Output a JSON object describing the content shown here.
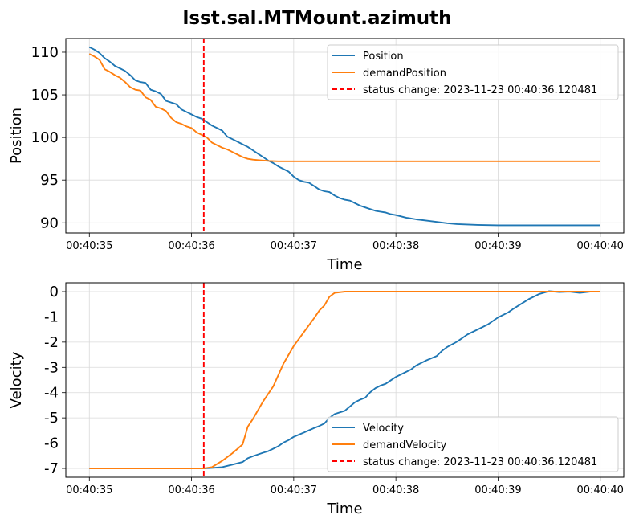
{
  "title": "lsst.sal.MTMount.azimuth",
  "chart_data": [
    {
      "type": "line",
      "xlabel": "Time",
      "ylabel": "Position",
      "xlim": [
        "00:40:35",
        "00:40:40"
      ],
      "ylim": [
        88.8,
        111.6
      ],
      "x_ticks": [
        "00:40:35",
        "00:40:36",
        "00:40:37",
        "00:40:38",
        "00:40:39",
        "00:40:40"
      ],
      "y_ticks": [
        90,
        95,
        100,
        105,
        110
      ],
      "grid": true,
      "legend_position": "top-right",
      "series": [
        {
          "name": "Position",
          "color": "#1f77b4",
          "x": [
            0,
            0.05,
            0.1,
            0.15,
            0.2,
            0.25,
            0.3,
            0.35,
            0.4,
            0.45,
            0.5,
            0.55,
            0.6,
            0.65,
            0.7,
            0.75,
            0.8,
            0.85,
            0.9,
            0.95,
            1.0,
            1.05,
            1.1,
            1.15,
            1.2,
            1.25,
            1.3,
            1.35,
            1.4,
            1.45,
            1.5,
            1.55,
            1.6,
            1.65,
            1.7,
            1.75,
            1.8,
            1.85,
            1.9,
            1.95,
            2.0,
            2.05,
            2.1,
            2.15,
            2.2,
            2.25,
            2.3,
            2.35,
            2.4,
            2.45,
            2.5,
            2.55,
            2.6,
            2.65,
            2.7,
            2.75,
            2.8,
            2.85,
            2.9,
            2.95,
            3.0,
            3.1,
            3.2,
            3.3,
            3.4,
            3.5,
            3.6,
            3.7,
            3.8,
            3.9,
            4.0,
            4.1,
            4.2,
            4.3,
            4.4,
            4.5,
            4.6,
            4.7,
            4.8,
            4.9,
            5.0
          ],
          "y": [
            110.6,
            110.3,
            109.9,
            109.3,
            108.9,
            108.4,
            108.1,
            107.8,
            107.3,
            106.7,
            106.5,
            106.4,
            105.6,
            105.4,
            105.1,
            104.3,
            104.1,
            103.9,
            103.3,
            103.0,
            102.7,
            102.4,
            102.2,
            101.8,
            101.4,
            101.1,
            100.8,
            100.1,
            99.8,
            99.5,
            99.2,
            98.9,
            98.5,
            98.1,
            97.7,
            97.3,
            97.0,
            96.6,
            96.3,
            96.0,
            95.4,
            95.0,
            94.8,
            94.7,
            94.3,
            93.9,
            93.7,
            93.6,
            93.2,
            92.9,
            92.7,
            92.6,
            92.3,
            92.0,
            91.8,
            91.6,
            91.4,
            91.3,
            91.2,
            91.0,
            90.9,
            90.6,
            90.4,
            90.25,
            90.1,
            89.95,
            89.85,
            89.8,
            89.75,
            89.72,
            89.7,
            89.7,
            89.7,
            89.7,
            89.7,
            89.7,
            89.7,
            89.7,
            89.7,
            89.7,
            89.7
          ]
        },
        {
          "name": "demandPosition",
          "color": "#ff7f0e",
          "x": [
            0,
            0.05,
            0.1,
            0.15,
            0.2,
            0.25,
            0.3,
            0.35,
            0.4,
            0.45,
            0.5,
            0.55,
            0.6,
            0.65,
            0.7,
            0.75,
            0.8,
            0.85,
            0.9,
            0.95,
            1.0,
            1.05,
            1.1,
            1.15,
            1.2,
            1.25,
            1.3,
            1.35,
            1.4,
            1.45,
            1.5,
            1.55,
            1.6,
            1.65,
            1.7,
            1.75,
            1.8,
            1.85,
            1.9,
            1.95,
            2.0,
            2.1,
            2.2,
            2.3,
            2.4,
            2.5,
            2.6,
            2.7,
            2.8,
            2.9,
            3.0,
            3.2,
            3.4,
            3.6,
            3.8,
            4.0,
            4.2,
            4.4,
            4.6,
            4.8,
            5.0
          ],
          "y": [
            109.8,
            109.5,
            109.1,
            108.0,
            107.7,
            107.3,
            107.0,
            106.5,
            105.9,
            105.6,
            105.5,
            104.7,
            104.4,
            103.6,
            103.4,
            103.1,
            102.3,
            101.8,
            101.6,
            101.3,
            101.1,
            100.6,
            100.3,
            100.0,
            99.4,
            99.1,
            98.8,
            98.6,
            98.3,
            98.0,
            97.7,
            97.5,
            97.4,
            97.35,
            97.3,
            97.25,
            97.22,
            97.2,
            97.2,
            97.2,
            97.2,
            97.2,
            97.2,
            97.2,
            97.2,
            97.2,
            97.2,
            97.2,
            97.2,
            97.2,
            97.2,
            97.2,
            97.2,
            97.2,
            97.2,
            97.2,
            97.2,
            97.2,
            97.2,
            97.2,
            97.2
          ]
        }
      ],
      "annotations": [
        {
          "name": "status change: 2023-11-23 00:40:36.120481",
          "x": 1.12,
          "color": "#ff0000",
          "style": "dashed"
        }
      ]
    },
    {
      "type": "line",
      "xlabel": "Time",
      "ylabel": "Velocity",
      "xlim": [
        "00:40:35",
        "00:40:40"
      ],
      "ylim": [
        -7.35,
        0.35
      ],
      "x_ticks": [
        "00:40:35",
        "00:40:36",
        "00:40:37",
        "00:40:38",
        "00:40:39",
        "00:40:40"
      ],
      "y_ticks": [
        0,
        -1,
        -2,
        -3,
        -4,
        -5,
        -6,
        -7
      ],
      "grid": true,
      "legend_position": "bottom-right",
      "series": [
        {
          "name": "Velocity",
          "color": "#1f77b4",
          "x": [
            0,
            0.5,
            1.0,
            1.12,
            1.2,
            1.3,
            1.4,
            1.5,
            1.55,
            1.6,
            1.7,
            1.75,
            1.8,
            1.85,
            1.9,
            1.95,
            2.0,
            2.1,
            2.2,
            2.25,
            2.3,
            2.35,
            2.4,
            2.5,
            2.6,
            2.65,
            2.7,
            2.75,
            2.8,
            2.85,
            2.9,
            3.0,
            3.1,
            3.15,
            3.2,
            3.3,
            3.4,
            3.45,
            3.5,
            3.6,
            3.7,
            3.8,
            3.9,
            4.0,
            4.1,
            4.15,
            4.2,
            4.3,
            4.4,
            4.5,
            4.55,
            4.6,
            4.7,
            4.8,
            4.9,
            5.0
          ],
          "y": [
            -7.0,
            -7.0,
            -7.0,
            -7.0,
            -6.98,
            -6.95,
            -6.85,
            -6.75,
            -6.6,
            -6.52,
            -6.38,
            -6.32,
            -6.22,
            -6.12,
            -5.98,
            -5.88,
            -5.75,
            -5.58,
            -5.4,
            -5.32,
            -5.22,
            -5.0,
            -4.85,
            -4.72,
            -4.38,
            -4.28,
            -4.2,
            -3.98,
            -3.82,
            -3.72,
            -3.65,
            -3.38,
            -3.18,
            -3.08,
            -2.92,
            -2.72,
            -2.55,
            -2.35,
            -2.2,
            -1.98,
            -1.7,
            -1.5,
            -1.3,
            -1.02,
            -0.82,
            -0.68,
            -0.55,
            -0.3,
            -0.1,
            0.02,
            0.0,
            -0.02,
            0.0,
            -0.05,
            0.0,
            0.0
          ]
        },
        {
          "name": "demandVelocity",
          "color": "#ff7f0e",
          "x": [
            0,
            0.5,
            1.0,
            1.12,
            1.2,
            1.3,
            1.4,
            1.5,
            1.55,
            1.6,
            1.7,
            1.8,
            1.9,
            2.0,
            2.1,
            2.2,
            2.25,
            2.3,
            2.35,
            2.4,
            2.5,
            3.0,
            3.5,
            4.0,
            4.5,
            5.0
          ],
          "y": [
            -7.0,
            -7.0,
            -7.0,
            -7.0,
            -6.95,
            -6.7,
            -6.4,
            -6.05,
            -5.35,
            -5.05,
            -4.35,
            -3.75,
            -2.85,
            -2.15,
            -1.6,
            -1.05,
            -0.75,
            -0.55,
            -0.2,
            -0.05,
            0.0,
            0.0,
            0.0,
            0.0,
            0.0,
            0.0
          ]
        }
      ],
      "annotations": [
        {
          "name": "status change: 2023-11-23 00:40:36.120481",
          "x": 1.12,
          "color": "#ff0000",
          "style": "dashed"
        }
      ]
    }
  ]
}
